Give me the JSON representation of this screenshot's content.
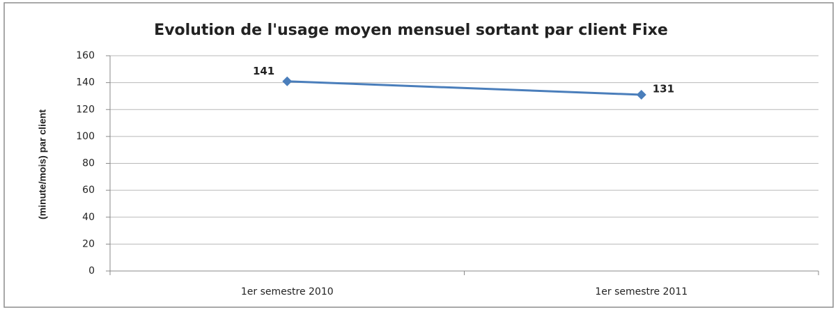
{
  "chart_data": {
    "type": "line",
    "title": "Evolution de l'usage moyen mensuel sortant par client Fixe",
    "y_label": "(minute/mois) par client",
    "categories": [
      "1er semestre 2010",
      "1er semestre 2011"
    ],
    "values": [
      141,
      131
    ],
    "color": "#4a7ebb",
    "ylim": [
      0,
      160
    ],
    "yticks": [
      0,
      20,
      40,
      60,
      80,
      100,
      120,
      140,
      160
    ],
    "grid": true
  }
}
